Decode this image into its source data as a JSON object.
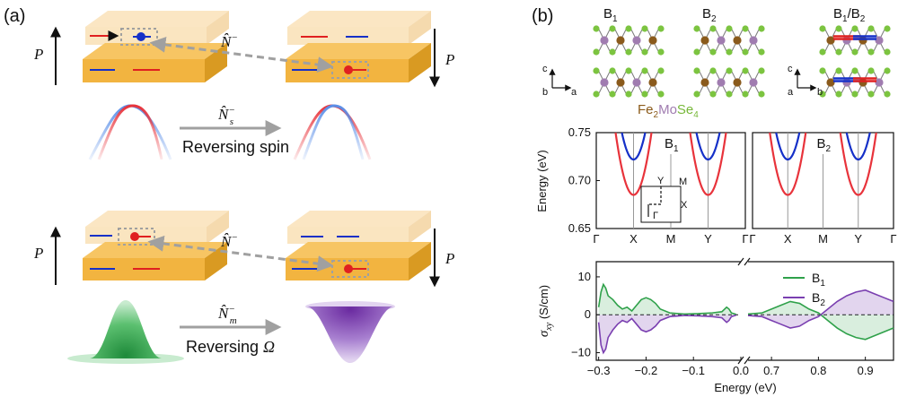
{
  "panel_a": {
    "label": "(a)",
    "polarization_label": "P",
    "top": {
      "operator_connect": "N̂⁻",
      "operator_connect_base": "N̂",
      "operator_connect_sup": "−",
      "operator_arrow_base": "N̂",
      "operator_arrow_sub": "s",
      "operator_arrow_sup": "−",
      "caption": "Reversing spin"
    },
    "bottom": {
      "operator_connect_base": "N̂",
      "operator_connect_sup": "−",
      "operator_arrow_base": "N̂",
      "operator_arrow_sub": "m",
      "operator_arrow_sup": "−",
      "caption_text": "Reversing ",
      "caption_symbol": "Ω"
    },
    "colors": {
      "slab": "#f2b440",
      "slab_top": "#f7ce7b",
      "slab_faded": "#f9e2b8",
      "spin_up": "#e02020",
      "spin_down": "#1530c8",
      "band_red": "#e8333b",
      "band_blue": "#5b8fe8",
      "green": "#2fa14a",
      "purple": "#7a3fb0",
      "dashed": "#a0a0a0"
    }
  },
  "panel_b": {
    "label": "(b)",
    "structures": {
      "b1": "B",
      "b1_sub": "1",
      "b2": "B",
      "b2_sub": "2",
      "b12_a": "B",
      "b12_a_sub": "1",
      "b12_sep": "/B",
      "b12_b_sub": "2",
      "formula_fe": "Fe",
      "formula_fe_sub": "2",
      "formula_mo": "Mo",
      "formula_se": "Se",
      "formula_se_sub": "4",
      "axis_c": "c",
      "axis_b": "b",
      "axis_a": "a"
    },
    "colors": {
      "fe": "#8a5a1c",
      "mo": "#a07cb0",
      "se": "#7cc440",
      "fe_text": "#8b5a1a",
      "se_text": "#78b83a"
    }
  },
  "chart_data": [
    {
      "type": "line",
      "ylabel": "Energy (eV)",
      "ylim": [
        0.65,
        0.75
      ],
      "yticks": [
        "0.65",
        "0.70",
        "0.75"
      ],
      "panels": [
        {
          "title_base": "B",
          "title_sub": "1",
          "xticks": [
            "Γ",
            "X",
            "M",
            "Y",
            "Γ"
          ]
        },
        {
          "title_base": "B",
          "title_sub": "2",
          "xticks": [
            "Γ",
            "X",
            "M",
            "Y",
            "Γ"
          ]
        }
      ],
      "band_minima_eV": {
        "red": 0.685,
        "blue": 0.722
      },
      "inset": {
        "labels": [
          "Y",
          "M",
          "X",
          "Γ"
        ]
      }
    },
    {
      "type": "line",
      "xlabel": "Energy (eV)",
      "ylabel_base": "σ",
      "ylabel_sub": "xy",
      "ylabel_unit": " (S/cm)",
      "ylim": [
        -12,
        14
      ],
      "yticks": [
        "10",
        "0",
        "−10"
      ],
      "ytick_values": [
        10,
        0,
        -10
      ],
      "xticks_left": [
        "−0.3",
        "−0.2",
        "−0.1",
        "0.0"
      ],
      "xticks_left_values": [
        -0.3,
        -0.2,
        -0.1,
        0.0
      ],
      "xticks_right": [
        "0.7",
        "0.8",
        "0.9"
      ],
      "xticks_right_values": [
        0.7,
        0.8,
        0.9
      ],
      "series": [
        {
          "name_base": "B",
          "name_sub": "1",
          "color": "#2fa14a",
          "left_x": [
            -0.3,
            -0.295,
            -0.29,
            -0.285,
            -0.28,
            -0.27,
            -0.26,
            -0.25,
            -0.24,
            -0.23,
            -0.22,
            -0.21,
            -0.2,
            -0.19,
            -0.18,
            -0.17,
            -0.15,
            -0.12,
            -0.09,
            -0.06,
            -0.04,
            -0.03,
            -0.025,
            -0.02,
            -0.015,
            -0.01
          ],
          "left_y": [
            2,
            6,
            8,
            7,
            5,
            4,
            2.5,
            1.5,
            2,
            1,
            2.5,
            4,
            4.5,
            4,
            3,
            1.5,
            0.5,
            0.2,
            0.3,
            0.5,
            0.8,
            2,
            1.5,
            0.5,
            0.3,
            0.1
          ],
          "right_x": [
            0.65,
            0.68,
            0.7,
            0.72,
            0.74,
            0.76,
            0.78,
            0.8,
            0.82,
            0.84,
            0.86,
            0.88,
            0.9,
            0.92,
            0.94,
            0.96
          ],
          "right_y": [
            0.2,
            0.5,
            1.5,
            2.5,
            3.5,
            3,
            1.5,
            0.5,
            -1.5,
            -3.5,
            -5,
            -6,
            -6.5,
            -5.5,
            -4.5,
            -3.5
          ]
        },
        {
          "name_base": "B",
          "name_sub": "2",
          "color": "#7a3fb0",
          "left_x": [
            -0.3,
            -0.295,
            -0.29,
            -0.285,
            -0.28,
            -0.27,
            -0.26,
            -0.25,
            -0.24,
            -0.23,
            -0.22,
            -0.21,
            -0.2,
            -0.19,
            -0.18,
            -0.17,
            -0.15,
            -0.12,
            -0.09,
            -0.06,
            -0.04,
            -0.03,
            -0.025,
            -0.02,
            -0.015,
            -0.01
          ],
          "left_y": [
            -2,
            -8,
            -10,
            -9,
            -6,
            -4,
            -2.5,
            -1.5,
            -2,
            -1,
            -2.5,
            -4,
            -4.5,
            -4,
            -3,
            -1.5,
            -0.5,
            -0.2,
            -0.3,
            -0.5,
            -0.8,
            -2,
            -1.5,
            -0.5,
            -0.3,
            -0.1
          ],
          "right_x": [
            0.65,
            0.68,
            0.7,
            0.72,
            0.74,
            0.76,
            0.78,
            0.8,
            0.82,
            0.84,
            0.86,
            0.88,
            0.9,
            0.92,
            0.94,
            0.96
          ],
          "right_y": [
            -0.2,
            -0.5,
            -1.5,
            -2.5,
            -3.5,
            -3,
            -1.5,
            -0.5,
            1.5,
            3.5,
            5,
            6,
            6.5,
            5.5,
            4.5,
            3.5
          ]
        }
      ]
    }
  ]
}
